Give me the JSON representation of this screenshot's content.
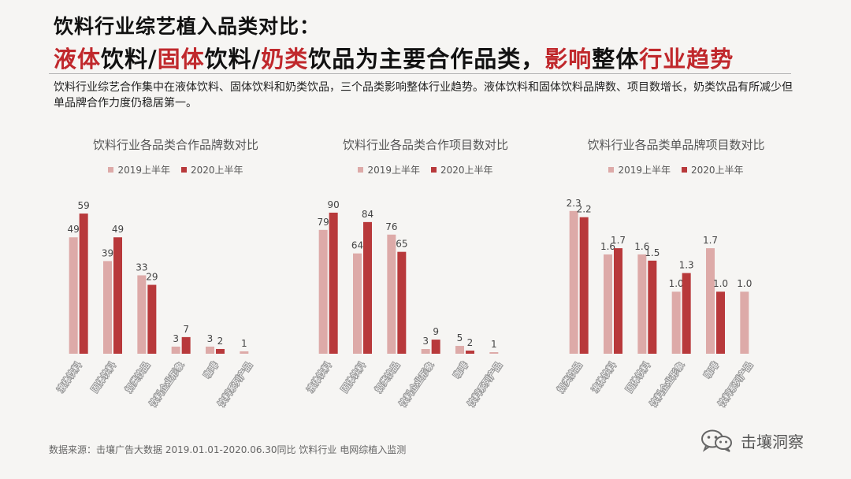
{
  "header": {
    "title_line1": "饮料行业综艺植入品类对比：",
    "title_line2": [
      {
        "text": "液体",
        "hl": true
      },
      {
        "text": "饮料/",
        "hl": false
      },
      {
        "text": "固体",
        "hl": true
      },
      {
        "text": "饮料/",
        "hl": false
      },
      {
        "text": "奶类",
        "hl": true
      },
      {
        "text": "饮品为主要合作品类，",
        "hl": false
      },
      {
        "text": "影响",
        "hl": true
      },
      {
        "text": "整体",
        "hl": false
      },
      {
        "text": "行业趋势",
        "hl": true
      }
    ]
  },
  "description": "饮料行业综艺合作集中在液体饮料、固体饮料和奶类饮品，三个品类影响整体行业趋势。液体饮料和固体饮料品牌数、项目数增长，奶类饮品有所减少但单品牌合作力度仍稳居第一。",
  "colors": {
    "series_2019": "#ddaaa8",
    "series_2020": "#b8393b",
    "highlight": "#c0282c"
  },
  "chart_data": [
    {
      "type": "bar",
      "title": "饮料行业各品类合作品牌数对比",
      "categories": [
        "液体饮料",
        "固体饮料",
        "奶类饮品",
        "饮料企业形象",
        "咖啡",
        "饮料系列产品"
      ],
      "series": [
        {
          "name": "2019上半年",
          "values": [
            49,
            39,
            33,
            3,
            3,
            1
          ],
          "labels": [
            "49",
            "39",
            "33",
            "3",
            "3",
            "1"
          ]
        },
        {
          "name": "2020上半年",
          "values": [
            59,
            49,
            29,
            7,
            2,
            null
          ],
          "labels": [
            "59",
            "49",
            "29",
            "7",
            "2",
            ""
          ]
        }
      ],
      "ylim": [
        0,
        64
      ]
    },
    {
      "type": "bar",
      "title": "饮料行业各品类合作项目数对比",
      "categories": [
        "液体饮料",
        "固体饮料",
        "奶类饮品",
        "饮料企业形象",
        "咖啡",
        "饮料系列产品"
      ],
      "series": [
        {
          "name": "2019上半年",
          "values": [
            79,
            64,
            76,
            3,
            5,
            1
          ],
          "labels": [
            "79",
            "64",
            "76",
            "3",
            "5",
            "1"
          ]
        },
        {
          "name": "2020上半年",
          "values": [
            90,
            84,
            65,
            9,
            2,
            null
          ],
          "labels": [
            "90",
            "84",
            "65",
            "9",
            "2",
            ""
          ]
        }
      ],
      "ylim": [
        0,
        97
      ]
    },
    {
      "type": "bar",
      "title": "饮料行业各品类单品牌项目数对比",
      "categories": [
        "奶类饮品",
        "液体饮料",
        "固体饮料",
        "饮料企业形象",
        "咖啡",
        "饮料系列产品"
      ],
      "series": [
        {
          "name": "2019上半年",
          "values": [
            2.3,
            1.6,
            1.6,
            1.0,
            1.7,
            1.0
          ],
          "labels": [
            "2.3",
            "1.6",
            "1.6",
            "1.0",
            "1.7",
            "1.0"
          ]
        },
        {
          "name": "2020上半年",
          "values": [
            2.2,
            1.7,
            1.5,
            1.3,
            1.0,
            null
          ],
          "labels": [
            "2.2",
            "1.7",
            "1.5",
            "1.3",
            "1.0",
            ""
          ]
        }
      ],
      "ylim": [
        0,
        2.45
      ]
    }
  ],
  "footer": {
    "source": "数据来源：击壤广告大数据 2019.01.01-2020.06.30同比 饮料行业 电网综植入监测",
    "brand": "击壤洞察",
    "brand_icon": "wechat-icon"
  }
}
